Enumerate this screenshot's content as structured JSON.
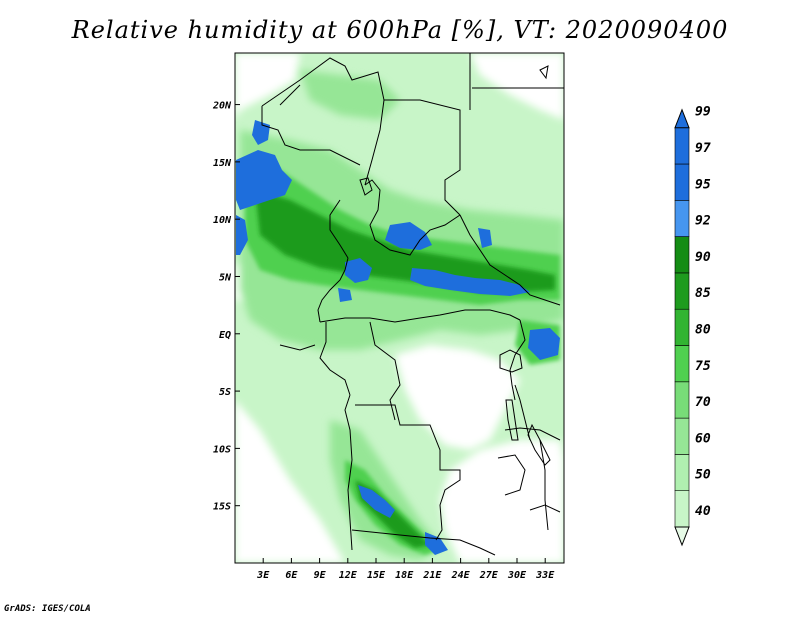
{
  "title": "Relative humidity at 600hPa [%], VT: 2020090400",
  "credit": "GrADS: IGES/COLA",
  "map": {
    "lon_range": [
      0,
      35
    ],
    "lat_range": [
      -20,
      24.5
    ],
    "x_ticks": [
      {
        "lon": 3,
        "label": "3E"
      },
      {
        "lon": 6,
        "label": "6E"
      },
      {
        "lon": 9,
        "label": "9E"
      },
      {
        "lon": 12,
        "label": "12E"
      },
      {
        "lon": 15,
        "label": "15E"
      },
      {
        "lon": 18,
        "label": "18E"
      },
      {
        "lon": 21,
        "label": "21E"
      },
      {
        "lon": 24,
        "label": "24E"
      },
      {
        "lon": 27,
        "label": "27E"
      },
      {
        "lon": 30,
        "label": "30E"
      },
      {
        "lon": 33,
        "label": "33E"
      }
    ],
    "y_ticks": [
      {
        "lat": 20,
        "label": "20N"
      },
      {
        "lat": 15,
        "label": "15N"
      },
      {
        "lat": 10,
        "label": "10N"
      },
      {
        "lat": 5,
        "label": "5N"
      },
      {
        "lat": 0,
        "label": "EQ"
      },
      {
        "lat": -5,
        "label": "5S"
      },
      {
        "lat": -10,
        "label": "10S"
      },
      {
        "lat": -15,
        "label": "15S"
      }
    ]
  },
  "legend": {
    "levels": [
      {
        "value": "40",
        "color": "#e6fae6"
      },
      {
        "value": "50",
        "color": "#c8f5c8"
      },
      {
        "value": "60",
        "color": "#b0f0b0"
      },
      {
        "value": "70",
        "color": "#96e696"
      },
      {
        "value": "75",
        "color": "#78dc78"
      },
      {
        "value": "80",
        "color": "#50d050"
      },
      {
        "value": "85",
        "color": "#32b432"
      },
      {
        "value": "90",
        "color": "#1e9b1e"
      },
      {
        "value": "92",
        "color": "#148c14"
      },
      {
        "value": "95",
        "color": "#4696f0"
      },
      {
        "value": "97",
        "color": "#1e6edc"
      },
      {
        "value": "99",
        "color": "#1e6edc"
      }
    ]
  }
}
